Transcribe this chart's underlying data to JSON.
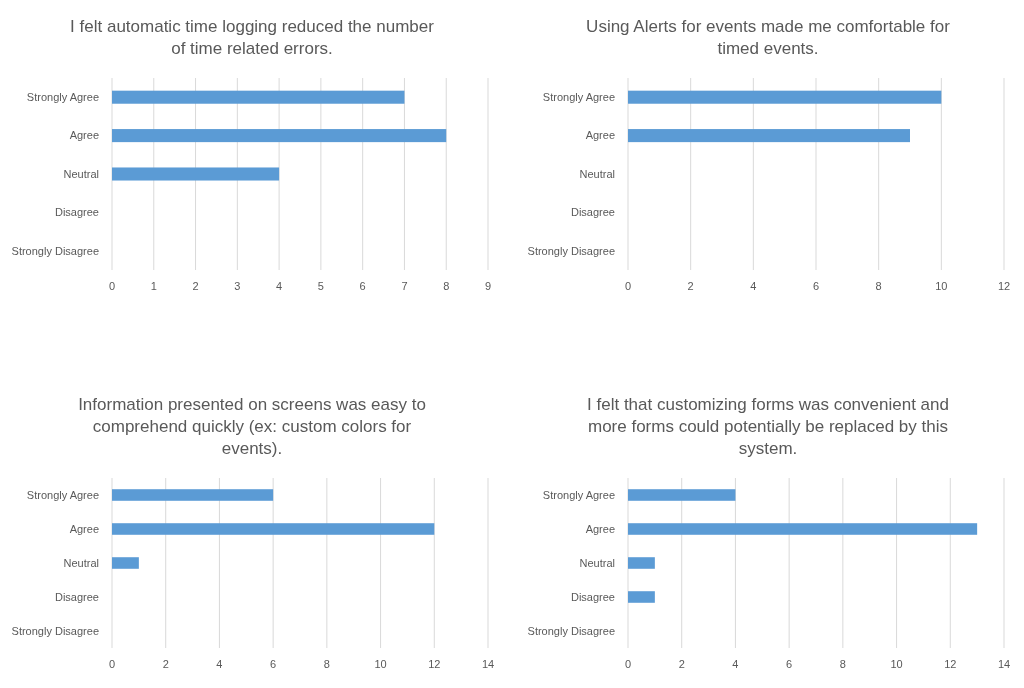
{
  "chart_data": [
    {
      "type": "bar",
      "orientation": "horizontal",
      "title": "I felt automatic time logging reduced the number of time related errors.",
      "categories": [
        "Strongly Agree",
        "Agree",
        "Neutral",
        "Disagree",
        "Strongly Disagree"
      ],
      "values": [
        7,
        8,
        4,
        0,
        0
      ],
      "color": "#5b9bd5",
      "xlim": [
        0,
        9
      ],
      "xticks": [
        0,
        1,
        2,
        3,
        4,
        5,
        6,
        7,
        8,
        9
      ],
      "grid": "x"
    },
    {
      "type": "bar",
      "orientation": "horizontal",
      "title": "Using Alerts for events made me comfortable for timed events.",
      "categories": [
        "Strongly Agree",
        "Agree",
        "Neutral",
        "Disagree",
        "Strongly Disagree"
      ],
      "values": [
        10,
        9,
        0,
        0,
        0
      ],
      "color": "#5b9bd5",
      "xlim": [
        0,
        12
      ],
      "xticks": [
        0,
        2,
        4,
        6,
        8,
        10,
        12
      ],
      "grid": "x"
    },
    {
      "type": "bar",
      "orientation": "horizontal",
      "title": "Information presented on screens was easy to comprehend quickly (ex: custom colors for events).",
      "categories": [
        "Strongly Agree",
        "Agree",
        "Neutral",
        "Disagree",
        "Strongly Disagree"
      ],
      "values": [
        6,
        12,
        1,
        0,
        0
      ],
      "color": "#5b9bd5",
      "xlim": [
        0,
        14
      ],
      "xticks": [
        0,
        2,
        4,
        6,
        8,
        10,
        12,
        14
      ],
      "grid": "x"
    },
    {
      "type": "bar",
      "orientation": "horizontal",
      "title": "I felt that customizing forms was convenient and more forms could potentially be replaced by this system.",
      "categories": [
        "Strongly Agree",
        "Agree",
        "Neutral",
        "Disagree",
        "Strongly Disagree"
      ],
      "values": [
        4,
        13,
        1,
        1,
        0
      ],
      "color": "#5b9bd5",
      "xlim": [
        0,
        14
      ],
      "xticks": [
        0,
        2,
        4,
        6,
        8,
        10,
        12,
        14
      ],
      "grid": "x"
    }
  ]
}
